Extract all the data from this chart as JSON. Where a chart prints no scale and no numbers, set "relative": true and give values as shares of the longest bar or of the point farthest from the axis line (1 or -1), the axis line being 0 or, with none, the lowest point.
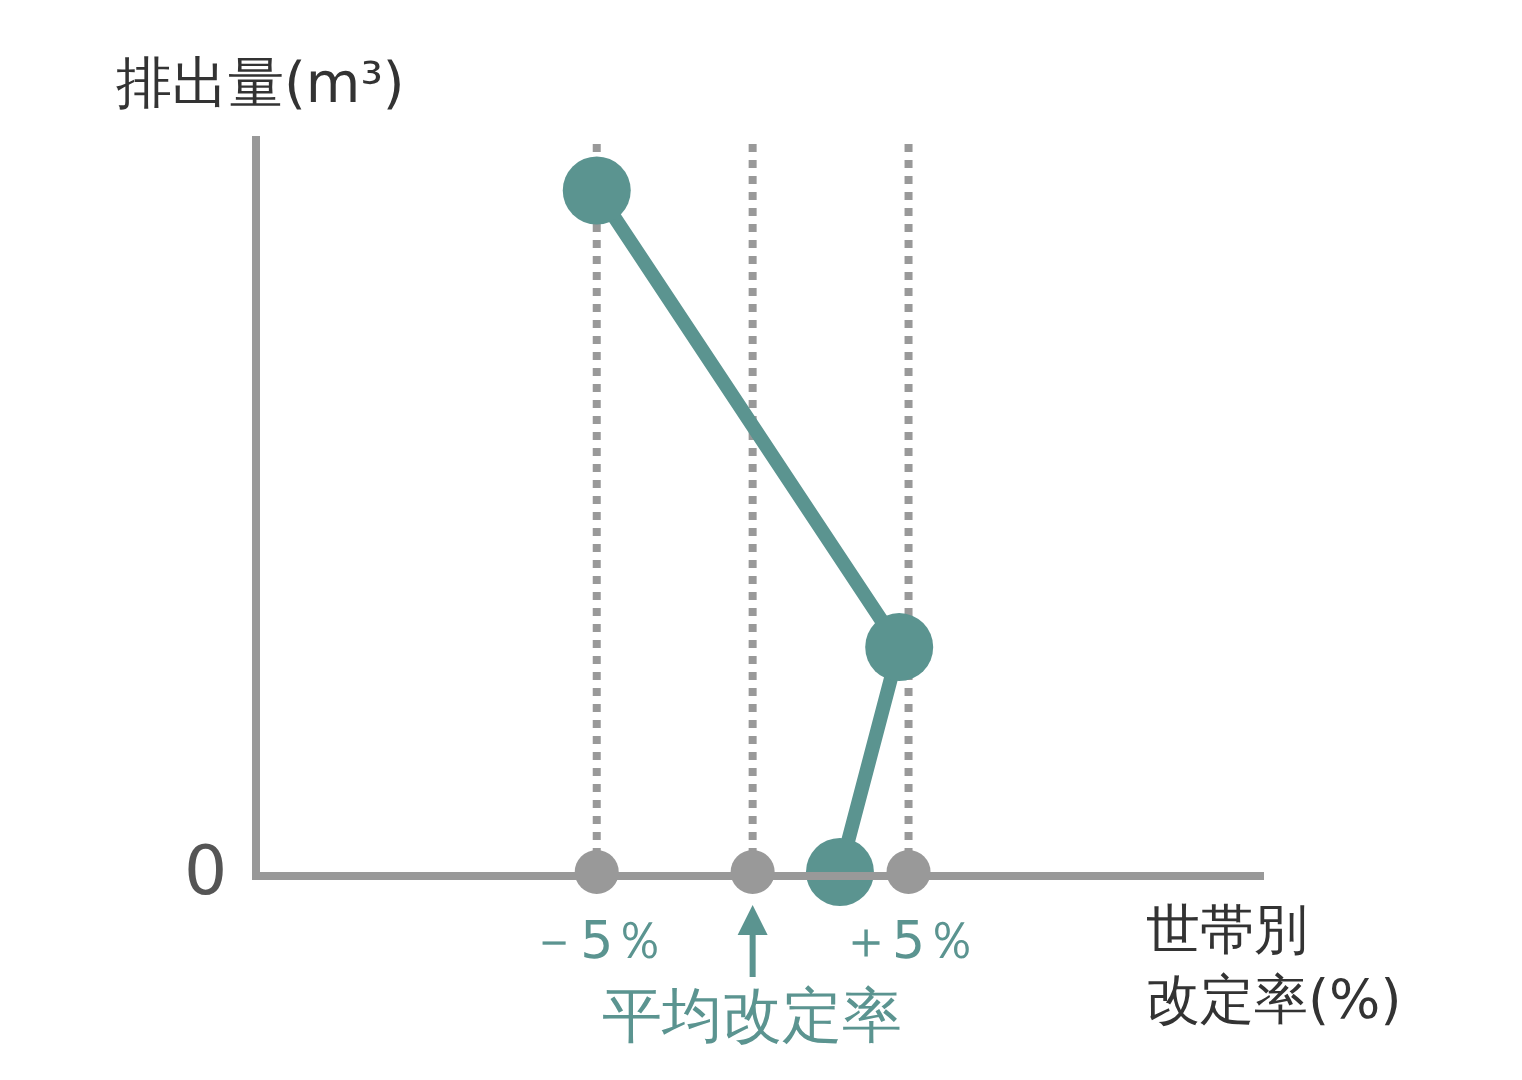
{
  "chart_data": {
    "type": "line",
    "relative": true,
    "ylabel": "排出量(m³)",
    "xlabel": "世帯別改定率(%)",
    "xlim": [
      -15.8,
      16.4
    ],
    "xticks": [
      {
        "value": -5,
        "label": "－5％"
      },
      {
        "value": 5,
        "label": "＋5％"
      }
    ],
    "marker": "circle",
    "grid": false,
    "series": [
      {
        "color": "#5b9490",
        "x": [
          -5,
          4.7,
          2.8
        ],
        "values": [
          1,
          0.33,
          0
        ]
      },
      {
        "type": "scatter",
        "color": "#999999",
        "x": [
          -5,
          0,
          5
        ],
        "values": [
          0,
          0,
          0
        ]
      }
    ],
    "ref_lines": [
      {
        "axis": "x",
        "value": -5,
        "color": "#999999",
        "line_style": "dotted"
      },
      {
        "axis": "x",
        "value": 0,
        "label": "平均改定率",
        "color": "#999999",
        "line_style": "dotted"
      },
      {
        "axis": "x",
        "value": 5,
        "color": "#999999",
        "line_style": "dotted"
      }
    ],
    "annotations": [
      "0"
    ]
  }
}
